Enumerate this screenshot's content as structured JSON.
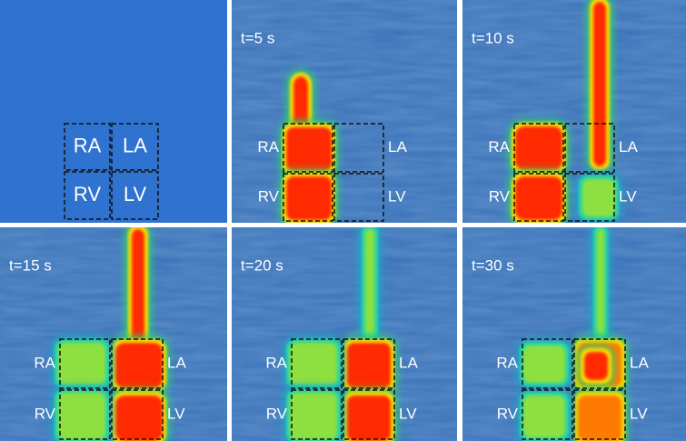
{
  "panels": [
    {
      "labels": [
        "RA",
        "LA",
        "RV",
        "LV"
      ]
    },
    {
      "time": "t=5 s",
      "labels": [
        "RA",
        "LA",
        "RV",
        "LV"
      ]
    },
    {
      "time": "t=10 s",
      "labels": [
        "RA",
        "LA",
        "RV",
        "LV"
      ]
    },
    {
      "time": "t=15 s",
      "labels": [
        "RA",
        "LA",
        "RV",
        "LV"
      ]
    },
    {
      "time": "t=20 s",
      "labels": [
        "RA",
        "LA",
        "RV",
        "LV"
      ]
    },
    {
      "time": "t=30 s",
      "labels": [
        "RA",
        "LA",
        "RV",
        "LV"
      ]
    }
  ]
}
